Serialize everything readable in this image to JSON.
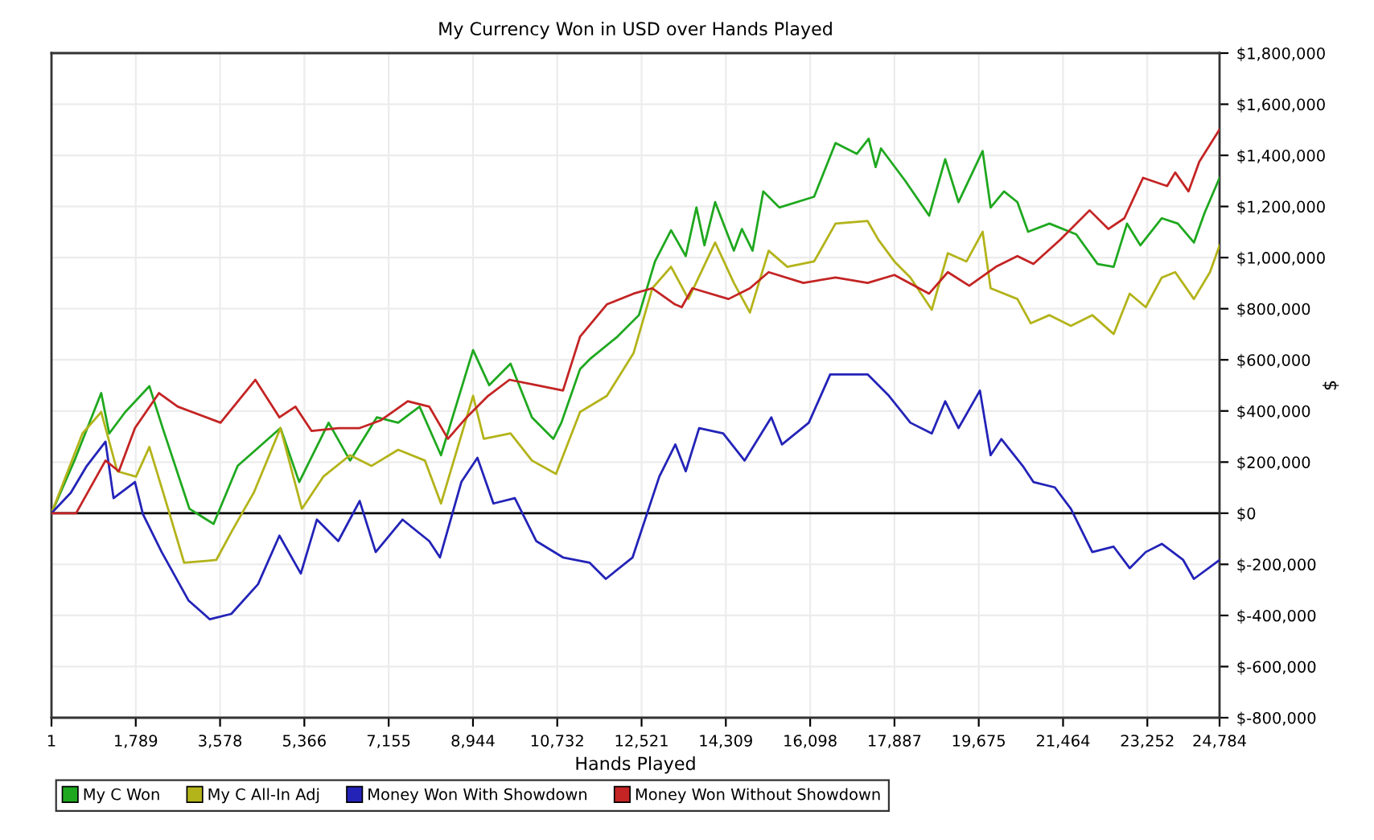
{
  "chart_data": {
    "type": "line",
    "title": "My Currency Won in USD over Hands Played",
    "xlabel": "Hands Played",
    "ylabel": "$",
    "xlim": [
      1,
      24784
    ],
    "xticks": [
      {
        "value": 1,
        "label": "1"
      },
      {
        "value": 1789,
        "label": "1,789"
      },
      {
        "value": 3578,
        "label": "3,578"
      },
      {
        "value": 5366,
        "label": "5,366"
      },
      {
        "value": 7155,
        "label": "7,155"
      },
      {
        "value": 8944,
        "label": "8,944"
      },
      {
        "value": 10732,
        "label": "10,732"
      },
      {
        "value": 12521,
        "label": "12,521"
      },
      {
        "value": 14309,
        "label": "14,309"
      },
      {
        "value": 16098,
        "label": "16,098"
      },
      {
        "value": 17887,
        "label": "17,887"
      },
      {
        "value": 19675,
        "label": "19,675"
      },
      {
        "value": 21464,
        "label": "21,464"
      },
      {
        "value": 23252,
        "label": "23,252"
      },
      {
        "value": 24784,
        "label": "24,784"
      }
    ],
    "ylim": [
      -800000,
      1800000
    ],
    "yticks": [
      {
        "value": -800000,
        "label": "$-800,000"
      },
      {
        "value": -600000,
        "label": "$-600,000"
      },
      {
        "value": -400000,
        "label": "$-400,000"
      },
      {
        "value": -200000,
        "label": "$-200,000"
      },
      {
        "value": 0,
        "label": "$0"
      },
      {
        "value": 200000,
        "label": "$200,000"
      },
      {
        "value": 400000,
        "label": "$400,000"
      },
      {
        "value": 600000,
        "label": "$600,000"
      },
      {
        "value": 800000,
        "label": "$800,000"
      },
      {
        "value": 1000000,
        "label": "$1,000,000"
      },
      {
        "value": 1200000,
        "label": "$1,200,000"
      },
      {
        "value": 1400000,
        "label": "$1,400,000"
      },
      {
        "value": 1600000,
        "label": "$1,600,000"
      },
      {
        "value": 1800000,
        "label": "$1,800,000"
      }
    ],
    "grid": true,
    "legend": "bottom left",
    "marker": "none",
    "line_style": "solid",
    "ref_lines": [
      {
        "axis": "y",
        "value": 0,
        "label": null,
        "color": "#000000"
      }
    ],
    "series": [
      {
        "name": "My C Won",
        "color": "#1fa81f",
        "x": [
          1,
          488,
          1056,
          1226,
          1567,
          2078,
          2361,
          2929,
          3440,
          3951,
          4860,
          5257,
          5881,
          6335,
          6903,
          7357,
          7811,
          8265,
          8946,
          9287,
          9741,
          10195,
          10649,
          10819,
          11216,
          11443,
          12011,
          12465,
          12806,
          13147,
          13458,
          13685,
          13855,
          14082,
          14479,
          14650,
          14876,
          15104,
          15444,
          16182,
          16636,
          17090,
          17340,
          17487,
          17601,
          18112,
          18622,
          18963,
          19246,
          19757,
          19927,
          20211,
          20495,
          20722,
          21176,
          21743,
          22197,
          22537,
          22821,
          23105,
          23559,
          23900,
          24240,
          24467,
          24784
        ],
        "values": [
          0,
          206000,
          470000,
          312000,
          396000,
          497000,
          333000,
          17000,
          -42000,
          185000,
          333000,
          122000,
          354000,
          206000,
          375000,
          354000,
          417000,
          227000,
          638000,
          501000,
          585000,
          375000,
          291000,
          354000,
          564000,
          606000,
          691000,
          775000,
          985000,
          1107000,
          1006000,
          1196000,
          1048000,
          1217000,
          1027000,
          1112000,
          1027000,
          1259000,
          1196000,
          1238000,
          1448000,
          1406000,
          1465000,
          1354000,
          1427000,
          1301000,
          1164000,
          1385000,
          1217000,
          1417000,
          1196000,
          1259000,
          1217000,
          1101000,
          1133000,
          1091000,
          975000,
          964000,
          1133000,
          1048000,
          1154000,
          1133000,
          1059000,
          1175000,
          1312000
        ]
      },
      {
        "name": "My C All-In Adj",
        "color": "#b3b31a",
        "x": [
          1,
          658,
          1056,
          1397,
          1794,
          2078,
          2475,
          2816,
          3497,
          3838,
          4292,
          4860,
          5314,
          5768,
          6335,
          6789,
          7357,
          7925,
          8265,
          8946,
          9173,
          9741,
          10195,
          10706,
          11216,
          11784,
          12352,
          12749,
          13147,
          13515,
          14082,
          14479,
          14820,
          15217,
          15614,
          16182,
          16636,
          17317,
          17544,
          17885,
          18225,
          18679,
          19019,
          19416,
          19757,
          19927,
          20495,
          20779,
          21176,
          21630,
          22084,
          22537,
          22878,
          23218,
          23559,
          23843,
          24240,
          24581,
          24784
        ],
        "values": [
          0,
          312000,
          396000,
          164000,
          143000,
          259000,
          17000,
          -194000,
          -183000,
          -67000,
          80000,
          333000,
          17000,
          143000,
          227000,
          185000,
          248000,
          206000,
          38000,
          459000,
          291000,
          312000,
          206000,
          154000,
          396000,
          459000,
          627000,
          880000,
          964000,
          838000,
          1059000,
          901000,
          785000,
          1027000,
          964000,
          985000,
          1133000,
          1143000,
          1070000,
          985000,
          922000,
          796000,
          1017000,
          985000,
          1101000,
          880000,
          838000,
          743000,
          775000,
          733000,
          775000,
          701000,
          859000,
          806000,
          922000,
          943000,
          838000,
          943000,
          1048000
        ]
      },
      {
        "name": "Money Won With Showdown",
        "color": "#2323b8",
        "x": [
          1,
          410,
          750,
          1147,
          1318,
          1772,
          1942,
          2339,
          2907,
          3361,
          3815,
          4383,
          4837,
          5291,
          5632,
          6086,
          6540,
          6880,
          7448,
          8016,
          8243,
          8697,
          9038,
          9378,
          9832,
          10286,
          10854,
          11421,
          11762,
          12330,
          12897,
          13238,
          13458,
          13742,
          14252,
          14706,
          15274,
          15501,
          16069,
          16523,
          17317,
          17771,
          18225,
          18679,
          18963,
          19246,
          19700,
          19927,
          20154,
          20608,
          20835,
          21289,
          21630,
          22084,
          22537,
          22878,
          23218,
          23559,
          24013,
          24240,
          24784
        ],
        "values": [
          0,
          80000,
          185000,
          280000,
          59000,
          122000,
          -4000,
          -152000,
          -341000,
          -415000,
          -394000,
          -278000,
          -88000,
          -236000,
          -25000,
          -109000,
          48000,
          -152000,
          -25000,
          -109000,
          -173000,
          122000,
          217000,
          38000,
          59000,
          -109000,
          -173000,
          -194000,
          -257000,
          -173000,
          143000,
          269000,
          164000,
          333000,
          312000,
          206000,
          375000,
          269000,
          354000,
          543000,
          543000,
          459000,
          354000,
          312000,
          438000,
          333000,
          480000,
          227000,
          290000,
          185000,
          122000,
          101000,
          17000,
          -152000,
          -131000,
          -215000,
          -152000,
          -120000,
          -183000,
          -257000,
          -183000
        ]
      },
      {
        "name": "Money Won Without Showdown",
        "color": "#c42424",
        "x": [
          1,
          523,
          1147,
          1431,
          1772,
          2282,
          2680,
          3588,
          4326,
          4837,
          5177,
          5518,
          6086,
          6540,
          6994,
          7561,
          8016,
          8413,
          8810,
          9264,
          9718,
          10286,
          10854,
          11216,
          11784,
          12352,
          12749,
          13231,
          13373,
          13600,
          13798,
          14366,
          14820,
          15217,
          15955,
          16636,
          17317,
          17885,
          18622,
          19019,
          19473,
          20040,
          20495,
          20835,
          21403,
          22027,
          22424,
          22764,
          23161,
          23672,
          23843,
          24126,
          24354,
          24784
        ],
        "values": [
          0,
          0,
          206000,
          164000,
          333000,
          470000,
          417000,
          354000,
          522000,
          375000,
          417000,
          322000,
          333000,
          333000,
          364000,
          438000,
          417000,
          291000,
          375000,
          459000,
          522000,
          501000,
          480000,
          691000,
          817000,
          859000,
          880000,
          817000,
          806000,
          880000,
          869000,
          838000,
          880000,
          943000,
          901000,
          922000,
          901000,
          932000,
          859000,
          943000,
          890000,
          964000,
          1006000,
          975000,
          1070000,
          1185000,
          1112000,
          1154000,
          1312000,
          1280000,
          1333000,
          1259000,
          1375000,
          1501000
        ]
      }
    ]
  }
}
